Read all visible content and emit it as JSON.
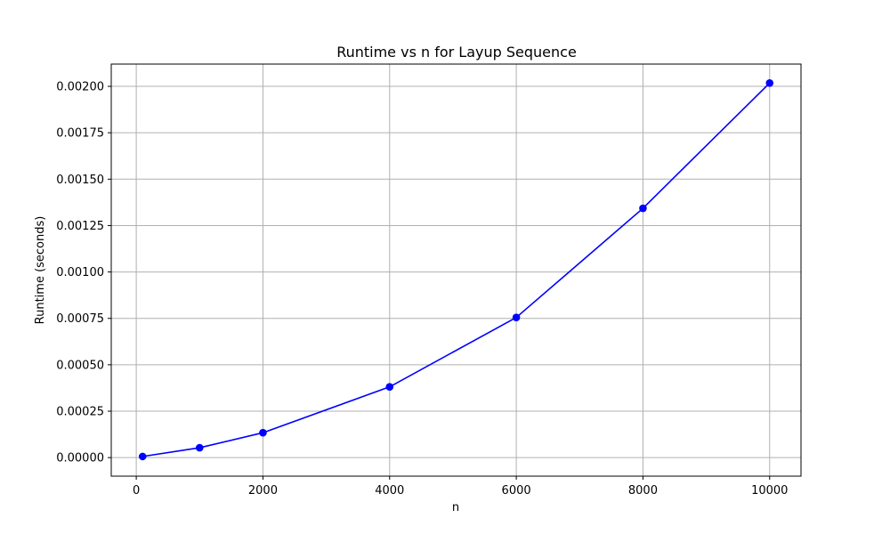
{
  "chart_data": {
    "type": "line",
    "title": "Runtime vs n for Layup Sequence",
    "xlabel": "n",
    "ylabel": "Runtime (seconds)",
    "x": [
      100,
      1000,
      2000,
      4000,
      6000,
      8000,
      10000
    ],
    "series": [
      {
        "values": [
          6e-06,
          5.3e-05,
          0.000134,
          0.000381,
          0.000755,
          0.001343,
          0.002018
        ],
        "color": "#0000ff",
        "marker": "circle"
      }
    ],
    "xlim": [
      -395,
      10495
    ],
    "ylim": [
      -0.0001,
      0.00212
    ],
    "xticks": [
      {
        "value": 0,
        "label": "0"
      },
      {
        "value": 2000,
        "label": "2000"
      },
      {
        "value": 4000,
        "label": "4000"
      },
      {
        "value": 6000,
        "label": "6000"
      },
      {
        "value": 8000,
        "label": "8000"
      },
      {
        "value": 10000,
        "label": "10000"
      }
    ],
    "yticks": [
      {
        "value": 0,
        "label": "0.00000"
      },
      {
        "value": 0.00025,
        "label": "0.00025"
      },
      {
        "value": 0.0005,
        "label": "0.00050"
      },
      {
        "value": 0.00075,
        "label": "0.00075"
      },
      {
        "value": 0.001,
        "label": "0.00100"
      },
      {
        "value": 0.00125,
        "label": "0.00125"
      },
      {
        "value": 0.0015,
        "label": "0.00150"
      },
      {
        "value": 0.00175,
        "label": "0.00175"
      },
      {
        "value": 0.002,
        "label": "0.00200"
      }
    ],
    "grid": true,
    "grid_color": "#b0b0b0",
    "axis_color": "#000000"
  }
}
